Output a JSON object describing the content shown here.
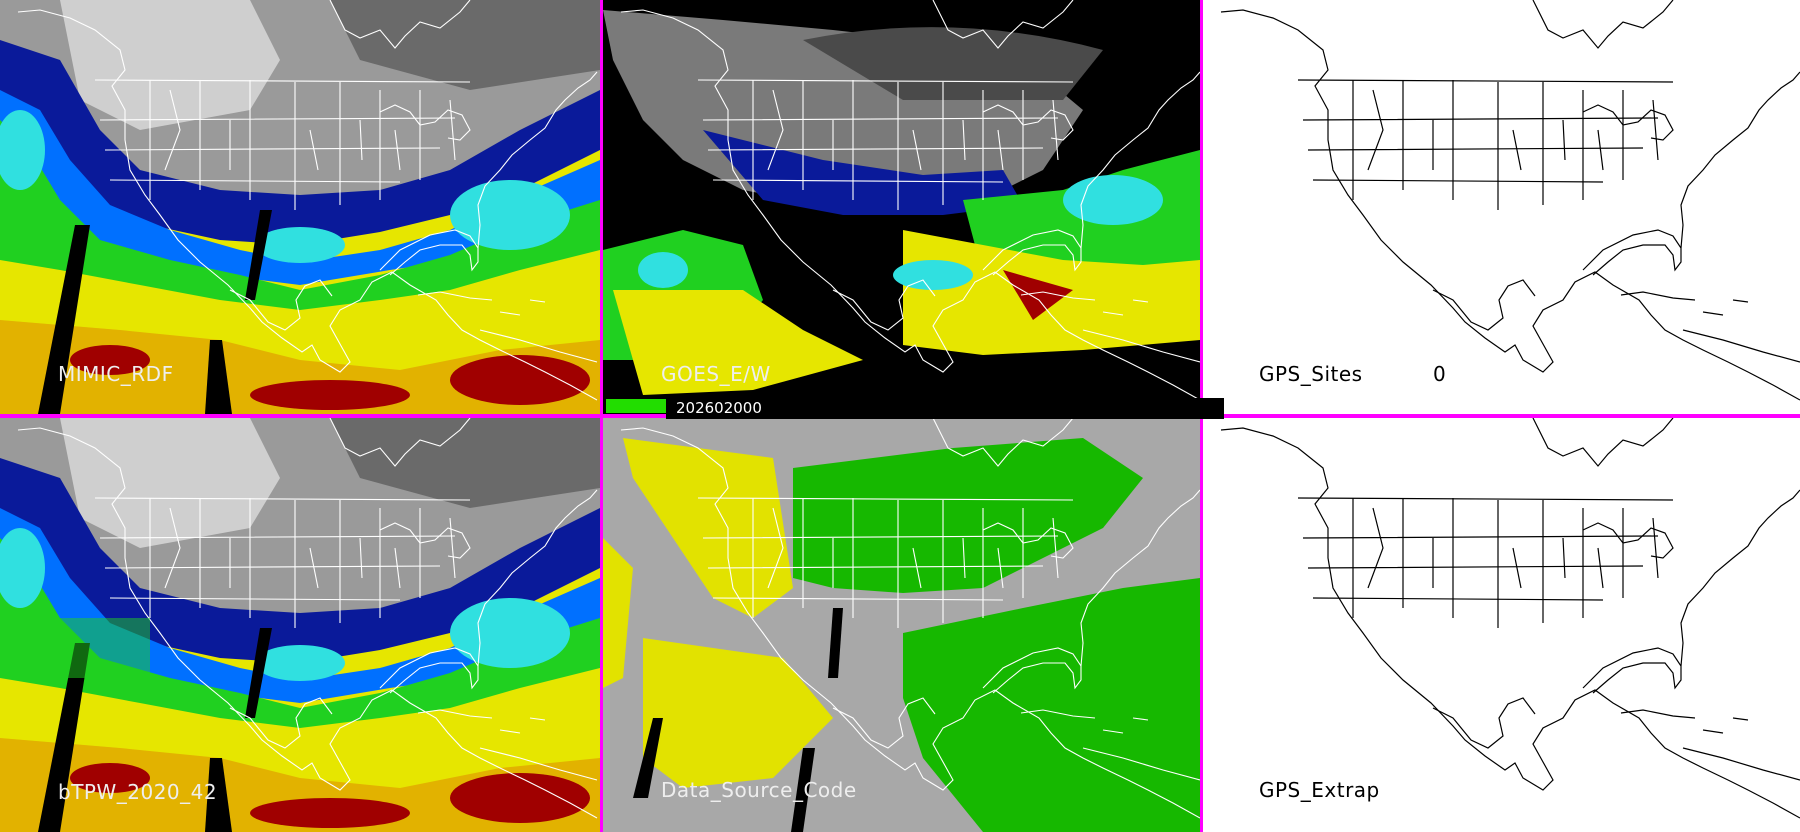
{
  "panels": [
    {
      "id": "mimic",
      "label": "MIMIC_RDF",
      "kind": "tpw"
    },
    {
      "id": "goes",
      "label": "GOES_E/W",
      "kind": "goes"
    },
    {
      "id": "gps",
      "label": "GPS_Sites",
      "value": "0",
      "kind": "blank"
    },
    {
      "id": "btpw",
      "label": "bTPW_2020_42",
      "kind": "tpw"
    },
    {
      "id": "dsc",
      "label": "Data_Source_Code",
      "kind": "dsc"
    },
    {
      "id": "gpsx",
      "label": "GPS_Extrap",
      "kind": "blank"
    }
  ],
  "timestamp": "202602000",
  "colors": {
    "divider": "#ff00ff",
    "tpw_scale": [
      "#5a5a5a",
      "#0a1a9a",
      "#0070ff",
      "#30e0e0",
      "#20d020",
      "#e0e000",
      "#e09000",
      "#a00000"
    ],
    "dsc_gray": "#a8a8a8",
    "dsc_green": "#16b800",
    "dsc_yellow": "#e2e200"
  }
}
